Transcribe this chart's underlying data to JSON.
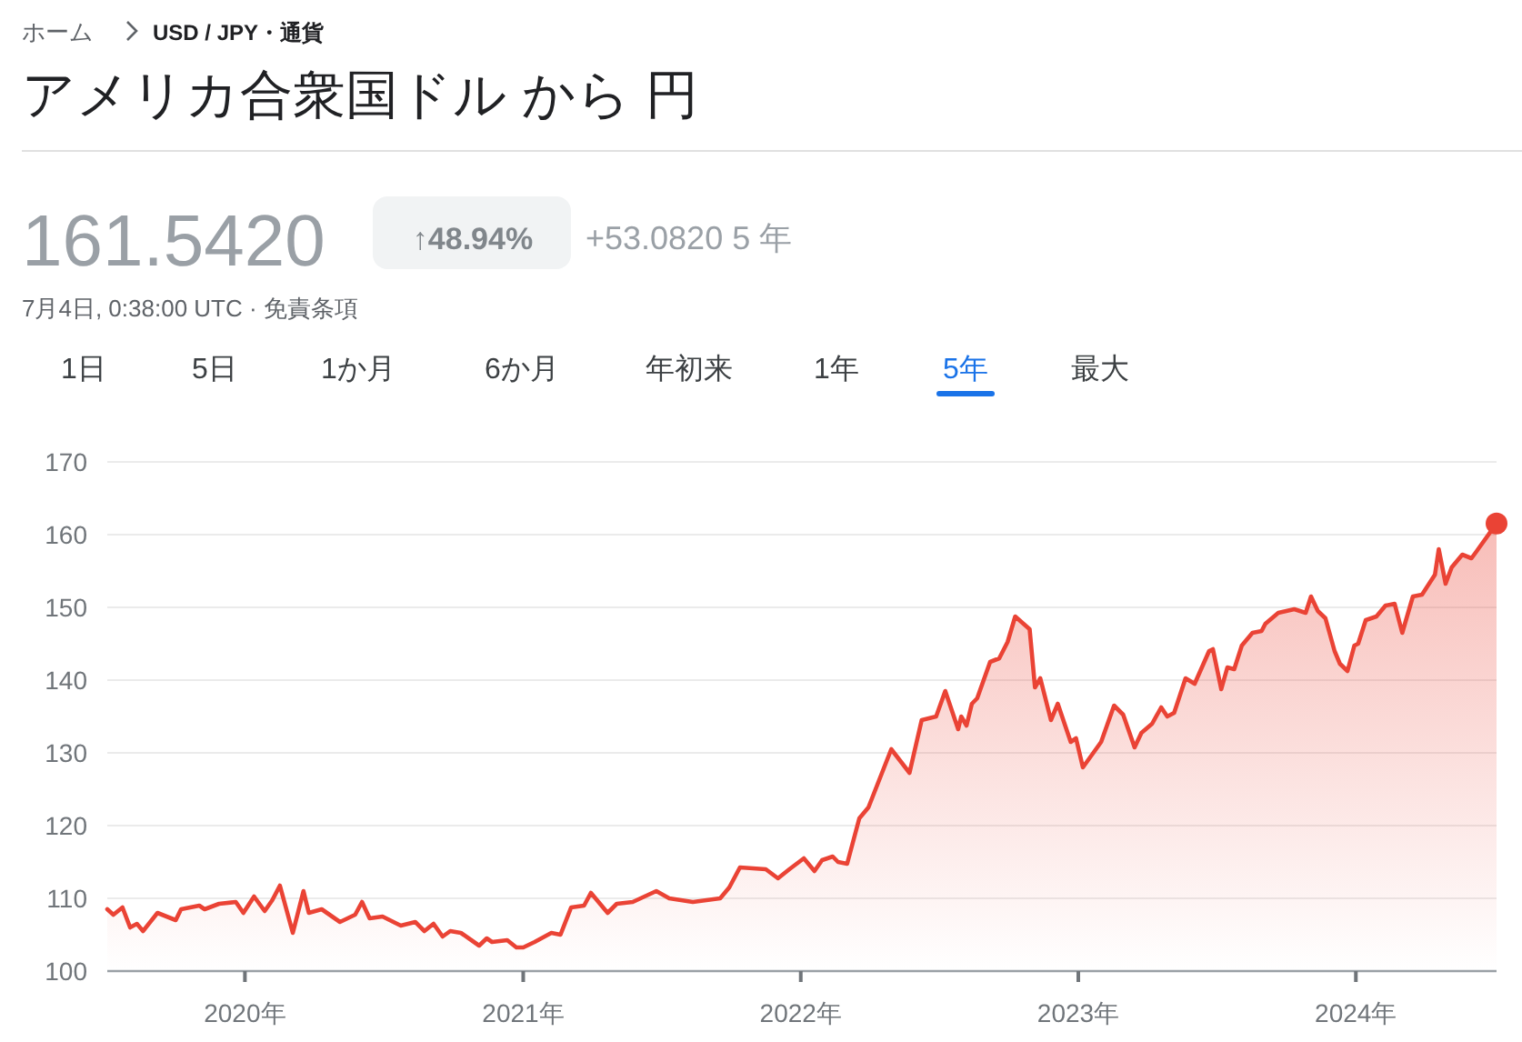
{
  "chart_data": {
    "type": "area",
    "title": "アメリカ合衆国ドル から 円",
    "annotations": [
      "ホーム",
      "USD / JPY・通貨",
      "161.5420",
      "↑48.94%",
      "+53.0820 5 年",
      "7月4日, 0:38:00 UTC · 免責条項",
      "1日",
      "5日",
      "1か月",
      "6か月",
      "年初来",
      "1年",
      "5年",
      "最大"
    ],
    "x": [
      "2019-07-04",
      "2019-07-12",
      "2019-07-24",
      "2019-08-03",
      "2019-08-12",
      "2019-08-20",
      "2019-09-08",
      "2019-10-02",
      "2019-10-09",
      "2019-11-02",
      "2019-11-09",
      "2019-11-28",
      "2019-12-20",
      "2019-12-30",
      "2020-01-13",
      "2020-01-27",
      "2020-02-06",
      "2020-02-16",
      "2020-03-04",
      "2020-03-18",
      "2020-03-25",
      "2020-04-11",
      "2020-05-05",
      "2020-05-25",
      "2020-06-03",
      "2020-06-13",
      "2020-06-30",
      "2020-07-24",
      "2020-08-12",
      "2020-08-24",
      "2020-09-05",
      "2020-09-17",
      "2020-09-27",
      "2020-10-11",
      "2020-11-04",
      "2020-11-14",
      "2020-11-21",
      "2020-12-11",
      "2020-12-23",
      "2021-01-01",
      "2021-01-16",
      "2021-02-07",
      "2021-02-19",
      "2021-03-05",
      "2021-03-22",
      "2021-03-31",
      "2021-04-22",
      "2021-05-04",
      "2021-05-25",
      "2021-06-25",
      "2021-07-12",
      "2021-08-12",
      "2021-09-17",
      "2021-09-29",
      "2021-10-13",
      "2021-11-16",
      "2021-12-02",
      "2021-12-17",
      "2022-01-05",
      "2022-01-19",
      "2022-01-29",
      "2022-02-12",
      "2022-02-19",
      "2022-03-03",
      "2022-03-19",
      "2022-03-31",
      "2022-04-30",
      "2022-05-24",
      "2022-06-09",
      "2022-06-28",
      "2022-07-10",
      "2022-07-27",
      "2022-07-31",
      "2022-08-07",
      "2022-08-14",
      "2022-08-21",
      "2022-09-07",
      "2022-09-19",
      "2022-09-30",
      "2022-10-10",
      "2022-10-29",
      "2022-11-05",
      "2022-11-12",
      "2022-11-26",
      "2022-12-05",
      "2022-12-22",
      "2022-12-29",
      "2023-01-07",
      "2023-01-19",
      "2023-01-31",
      "2023-02-17",
      "2023-03-01",
      "2023-03-16",
      "2023-03-25",
      "2023-04-08",
      "2023-04-20",
      "2023-04-28",
      "2023-05-07",
      "2023-05-22",
      "2023-06-03",
      "2023-06-22",
      "2023-06-27",
      "2023-07-08",
      "2023-07-16",
      "2023-07-25",
      "2023-08-04",
      "2023-08-18",
      "2023-08-30",
      "2023-09-04",
      "2023-09-21",
      "2023-10-12",
      "2023-10-27",
      "2023-11-03",
      "2023-11-12",
      "2023-11-22",
      "2023-12-04",
      "2023-12-11",
      "2023-12-21",
      "2023-12-30",
      "2024-01-04",
      "2024-01-14",
      "2024-01-28",
      "2024-02-09",
      "2024-02-21",
      "2024-03-02",
      "2024-03-16",
      "2024-03-28",
      "2024-04-14",
      "2024-04-19",
      "2024-04-28",
      "2024-05-06",
      "2024-05-20",
      "2024-06-01",
      "2024-06-08",
      "2024-07-04"
    ],
    "series": [
      {
        "color": "#ea4335",
        "values": [
          108.5,
          107.75,
          108.75,
          106,
          106.5,
          105.5,
          108,
          107,
          108.5,
          109,
          108.5,
          109.25,
          109.5,
          108,
          110.25,
          108.25,
          109.75,
          111.75,
          105.25,
          111,
          108,
          108.5,
          106.75,
          107.75,
          109.5,
          107.25,
          107.5,
          106.25,
          106.75,
          105.5,
          106.5,
          104.75,
          105.5,
          105.25,
          103.5,
          104.5,
          104,
          104.25,
          103.25,
          103.25,
          104,
          105.25,
          105,
          108.75,
          109,
          110.75,
          108,
          109.25,
          109.5,
          111,
          110,
          109.5,
          110,
          111.5,
          114.25,
          114,
          112.75,
          114,
          115.5,
          113.75,
          115.25,
          115.75,
          115,
          114.75,
          121,
          122.5,
          130.5,
          127.25,
          134.5,
          135,
          138.5,
          133.25,
          135,
          133.75,
          136.75,
          137.5,
          142.5,
          143,
          145.25,
          148.75,
          147,
          139,
          140.25,
          134.5,
          136.75,
          131.5,
          132,
          128,
          129.75,
          131.5,
          136.5,
          135.25,
          130.75,
          132.75,
          134,
          136.25,
          135,
          135.5,
          140.25,
          139.5,
          144,
          144.25,
          138.75,
          141.75,
          141.5,
          144.75,
          146.5,
          146.75,
          147.75,
          149.25,
          149.75,
          149.25,
          151.5,
          149.5,
          148.5,
          144,
          142.25,
          141.25,
          144.75,
          145,
          148.25,
          148.75,
          150.25,
          150.5,
          146.5,
          151.5,
          151.75,
          154.5,
          158,
          153.25,
          155.5,
          157.25,
          156.75,
          157.75,
          161.542
        ]
      },
      {
        "type": "scatter",
        "color": "#ea4335",
        "marker": "circle",
        "x": [
          "2024-07-04"
        ],
        "values": [
          161.542
        ]
      }
    ],
    "xlim": [
      "2019-07-04",
      "2024-07-04"
    ],
    "xticks": [
      {
        "value": "2020-01-01",
        "label": "2020年"
      },
      {
        "value": "2021-01-01",
        "label": "2021年"
      },
      {
        "value": "2022-01-01",
        "label": "2022年"
      },
      {
        "value": "2023-01-01",
        "label": "2023年"
      },
      {
        "value": "2024-01-01",
        "label": "2024年"
      }
    ],
    "ylim": [
      100,
      170
    ],
    "yticks": [
      100,
      110,
      120,
      130,
      140,
      150,
      160,
      170
    ],
    "grid": "y"
  }
}
